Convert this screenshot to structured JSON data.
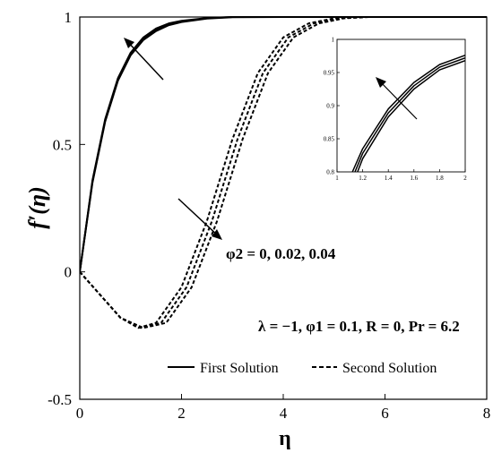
{
  "chart_data": {
    "type": "line",
    "xlabel": "η",
    "ylabel": "f′(η)",
    "xlim": [
      0,
      8
    ],
    "ylim": [
      -0.5,
      1
    ],
    "x_ticks": [
      "0",
      "2",
      "4",
      "6",
      "8"
    ],
    "y_ticks": [
      "-0.5",
      "0",
      "0.5",
      "1"
    ],
    "grid": false,
    "legend": {
      "position": "bottom-right",
      "entries": [
        {
          "label": "First Solution",
          "style": "solid"
        },
        {
          "label": "Second Solution",
          "style": "dashed"
        }
      ]
    },
    "annotations": {
      "phi2": "φ2 = 0, 0.02, 0.04",
      "params": "λ = −1, φ1 = 0.1, R = 0, Pr = 6.2"
    },
    "series": [
      {
        "group": "First Solution",
        "style": "solid",
        "x": [
          0,
          0.25,
          0.5,
          0.75,
          1.0,
          1.25,
          1.5,
          1.75,
          2.0,
          2.5,
          3.0,
          4.0,
          6.0,
          8.0
        ],
        "values": [
          0,
          0.36,
          0.6,
          0.76,
          0.86,
          0.92,
          0.955,
          0.975,
          0.985,
          0.996,
          1.0,
          1.0,
          1.0,
          1.0
        ]
      },
      {
        "group": "First Solution",
        "style": "solid",
        "x": [
          0,
          0.25,
          0.5,
          0.75,
          1.0,
          1.25,
          1.5,
          1.75,
          2.0,
          2.5,
          3.0,
          4.0,
          6.0,
          8.0
        ],
        "values": [
          0,
          0.355,
          0.595,
          0.755,
          0.855,
          0.915,
          0.95,
          0.972,
          0.983,
          0.995,
          1.0,
          1.0,
          1.0,
          1.0
        ]
      },
      {
        "group": "First Solution",
        "style": "solid",
        "x": [
          0,
          0.25,
          0.5,
          0.75,
          1.0,
          1.25,
          1.5,
          1.75,
          2.0,
          2.5,
          3.0,
          4.0,
          6.0,
          8.0
        ],
        "values": [
          0,
          0.35,
          0.59,
          0.75,
          0.85,
          0.91,
          0.945,
          0.968,
          0.98,
          0.994,
          0.999,
          1.0,
          1.0,
          1.0
        ]
      },
      {
        "group": "Second Solution",
        "style": "dashed",
        "x": [
          0,
          0.4,
          0.8,
          1.15,
          1.5,
          2.0,
          2.5,
          3.0,
          3.5,
          4.0,
          4.5,
          5.0,
          5.5,
          6.0,
          8.0
        ],
        "values": [
          0,
          -0.09,
          -0.18,
          -0.22,
          -0.2,
          -0.06,
          0.2,
          0.52,
          0.78,
          0.92,
          0.975,
          0.995,
          1.0,
          1.0,
          1.0
        ]
      },
      {
        "group": "Second Solution",
        "style": "dashed",
        "x": [
          0,
          0.4,
          0.8,
          1.2,
          1.6,
          2.1,
          2.6,
          3.1,
          3.6,
          4.1,
          4.6,
          5.1,
          5.6,
          6.1,
          8.0
        ],
        "values": [
          0,
          -0.09,
          -0.18,
          -0.22,
          -0.2,
          -0.06,
          0.2,
          0.52,
          0.78,
          0.92,
          0.975,
          0.995,
          1.0,
          1.0,
          1.0
        ]
      },
      {
        "group": "Second Solution",
        "style": "dashed",
        "x": [
          0,
          0.4,
          0.8,
          1.25,
          1.7,
          2.2,
          2.7,
          3.2,
          3.7,
          4.2,
          4.7,
          5.2,
          5.7,
          6.2,
          8.0
        ],
        "values": [
          0,
          -0.09,
          -0.18,
          -0.22,
          -0.2,
          -0.06,
          0.2,
          0.52,
          0.78,
          0.92,
          0.975,
          0.995,
          1.0,
          1.0,
          1.0
        ]
      }
    ],
    "inset": {
      "xlim": [
        1,
        2
      ],
      "ylim": [
        0.8,
        1
      ],
      "x_ticks": [
        "1",
        "1.2",
        "1.4",
        "1.6",
        "1.8",
        "2"
      ],
      "y_ticks": [
        "0.8",
        "0.85",
        "0.9",
        "0.95",
        "1"
      ],
      "series": [
        {
          "x": [
            1.12,
            1.2,
            1.4,
            1.6,
            1.8,
            2.0
          ],
          "values": [
            0.8,
            0.835,
            0.895,
            0.935,
            0.962,
            0.976
          ]
        },
        {
          "x": [
            1.14,
            1.2,
            1.4,
            1.6,
            1.8,
            2.0
          ],
          "values": [
            0.8,
            0.828,
            0.889,
            0.93,
            0.958,
            0.972
          ]
        },
        {
          "x": [
            1.16,
            1.2,
            1.4,
            1.6,
            1.8,
            2.0
          ],
          "values": [
            0.8,
            0.82,
            0.883,
            0.925,
            0.954,
            0.968
          ]
        }
      ]
    }
  }
}
